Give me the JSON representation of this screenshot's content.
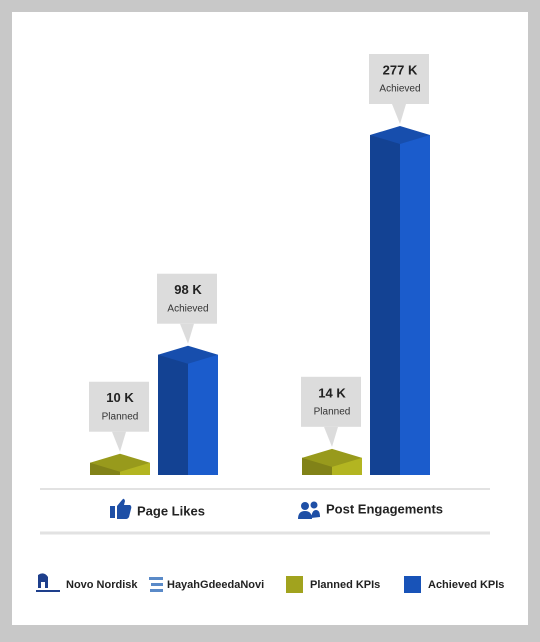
{
  "chart_data": {
    "type": "bar",
    "categories": [
      "Page Likes",
      "Post Engagements"
    ],
    "series": [
      {
        "name": "Planned KPIs",
        "callout_label": "Planned",
        "color": "#b3b521",
        "values": [
          10,
          14
        ],
        "value_labels": [
          "10 K",
          "14 K"
        ]
      },
      {
        "name": "Achieved KPIs",
        "callout_label": "Achieved",
        "color": "#1b5ccc",
        "values": [
          98,
          277
        ],
        "value_labels": [
          "98 K",
          "277 K"
        ]
      }
    ],
    "brands": [
      "Novo Nordisk",
      "HayahGdeedaNovi"
    ]
  }
}
